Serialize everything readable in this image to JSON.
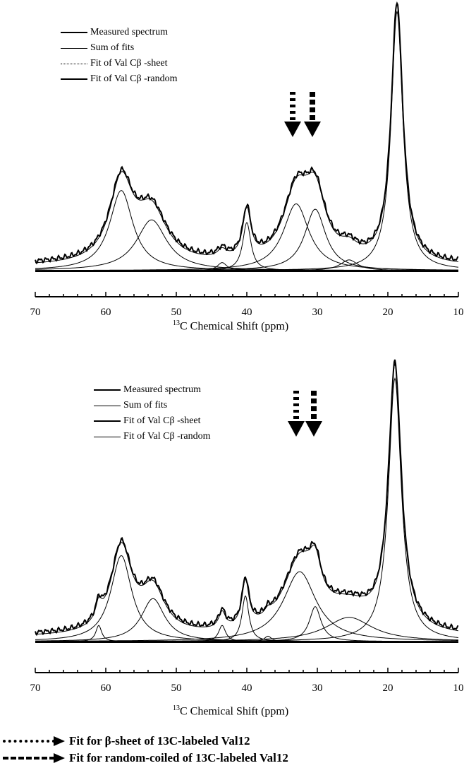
{
  "chart_data": [
    {
      "type": "line",
      "title": "",
      "xlabel_sup": "13",
      "xlabel": "C Chemical Shift (ppm)",
      "xlim": [
        70,
        10
      ],
      "xticks": [
        "70",
        "60",
        "50",
        "40",
        "30",
        "20",
        "10"
      ],
      "legend": [
        "Measured spectrum",
        "Sum of fits",
        "Fit of Val Cβ -sheet",
        "Fit of Val Cβ -random"
      ],
      "legend_position": "top-left",
      "components": [
        {
          "center": 18.7,
          "height": 0.97,
          "hwhm": 1.0
        },
        {
          "center": 57.8,
          "height": 0.3,
          "hwhm": 2.0
        },
        {
          "center": 53.5,
          "height": 0.19,
          "hwhm": 2.6
        },
        {
          "center": 40.0,
          "height": 0.18,
          "hwhm": 0.7
        },
        {
          "center": 43.5,
          "height": 0.03,
          "hwhm": 0.8
        },
        {
          "center": 33.0,
          "height": 0.25,
          "hwhm": 2.2,
          "label": "sheet"
        },
        {
          "center": 30.3,
          "height": 0.23,
          "hwhm": 1.8,
          "label": "random"
        },
        {
          "center": 25.5,
          "height": 0.04,
          "hwhm": 1.5
        }
      ],
      "arrows": [
        {
          "ppm": 33.5,
          "style": "dotted"
        },
        {
          "ppm": 30.7,
          "style": "dashed"
        }
      ]
    },
    {
      "type": "line",
      "title": "",
      "xlabel_sup": "13",
      "xlabel": "C Chemical Shift (ppm)",
      "xlim": [
        70,
        10
      ],
      "xticks": [
        "70",
        "60",
        "50",
        "40",
        "30",
        "20",
        "10"
      ],
      "legend": [
        "Measured spectrum",
        "Sum of fits",
        "Fit of Val Cβ -sheet",
        "Fit of Val Cβ -random"
      ],
      "legend_position": "top-left",
      "components": [
        {
          "center": 19.0,
          "height": 0.98,
          "hwhm": 1.1
        },
        {
          "center": 57.8,
          "height": 0.32,
          "hwhm": 1.8
        },
        {
          "center": 53.3,
          "height": 0.16,
          "hwhm": 2.0
        },
        {
          "center": 40.2,
          "height": 0.17,
          "hwhm": 0.6
        },
        {
          "center": 43.5,
          "height": 0.06,
          "hwhm": 0.6
        },
        {
          "center": 61.0,
          "height": 0.06,
          "hwhm": 0.5
        },
        {
          "center": 37.0,
          "height": 0.02,
          "hwhm": 0.6
        },
        {
          "center": 32.5,
          "height": 0.26,
          "hwhm": 2.8,
          "label": "sheet"
        },
        {
          "center": 30.3,
          "height": 0.13,
          "hwhm": 1.0,
          "label": "random"
        },
        {
          "center": 25.5,
          "height": 0.09,
          "hwhm": 4.0
        }
      ],
      "arrows": [
        {
          "ppm": 33.0,
          "style": "dotted"
        },
        {
          "ppm": 30.5,
          "style": "dashed"
        }
      ]
    }
  ],
  "bottom_legend": [
    {
      "style": "dotted",
      "text": "Fit for β-sheet of 13C-labeled Val12"
    },
    {
      "style": "dashed",
      "text": "Fit for random-coiled of 13C-labeled Val12"
    }
  ]
}
